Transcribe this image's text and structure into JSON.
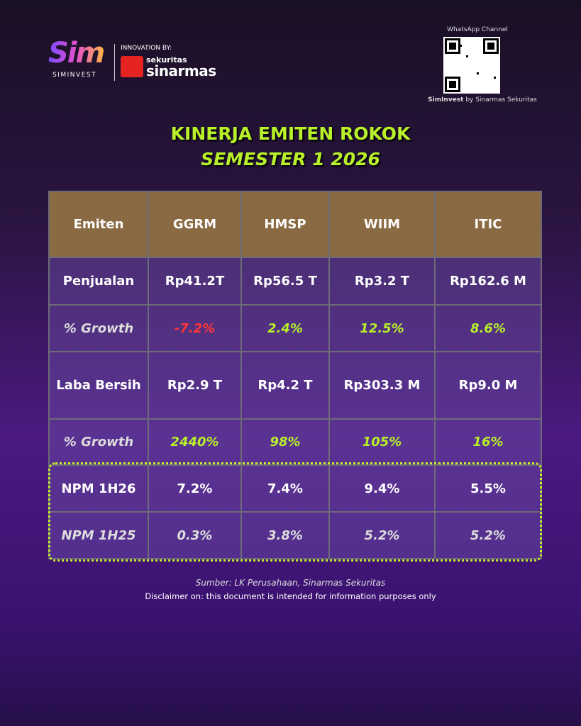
{
  "header": {
    "logo": "Sim",
    "logo_caption": "SIMINVEST",
    "innovation": "INNOVATION BY:",
    "brand_small": "sekuritas",
    "brand_big": "sinarmas"
  },
  "whatsapp": {
    "title": "WhatsApp Channel",
    "caption_bold": "SimInvest",
    "caption": "by Sinarmas Sekuritas"
  },
  "title": "KINERJA EMITEN ROKOK",
  "subtitle": "SEMESTER 1 2026",
  "table": {
    "headers": [
      "Emiten",
      "GGRM",
      "HMSP",
      "WIIM",
      "ITIC"
    ],
    "rows": [
      [
        "Penjualan",
        "Rp41.2T",
        "Rp56.5 T",
        "Rp3.2 T",
        "Rp162.6 M"
      ],
      [
        "% Growth",
        "-7.2%",
        "2.4%",
        "12.5%",
        "8.6%"
      ],
      [
        "Laba Bersih",
        "Rp2.9 T",
        "Rp4.2 T",
        "Rp303.3 M",
        "Rp9.0 M"
      ],
      [
        "% Growth",
        "2440%",
        "98%",
        "105%",
        "16%"
      ],
      [
        "NPM 1H26",
        "7.2%",
        "7.4%",
        "9.4%",
        "5.5%"
      ],
      [
        "NPM 1H25",
        "0.3%",
        "3.8%",
        "5.2%",
        "5.2%"
      ]
    ]
  },
  "footer": {
    "source": "Sumber: LK Perusahaan, Sinarmas Sekuritas",
    "disclaimer": "Disclaimer on: this document is intended for information purposes only"
  }
}
